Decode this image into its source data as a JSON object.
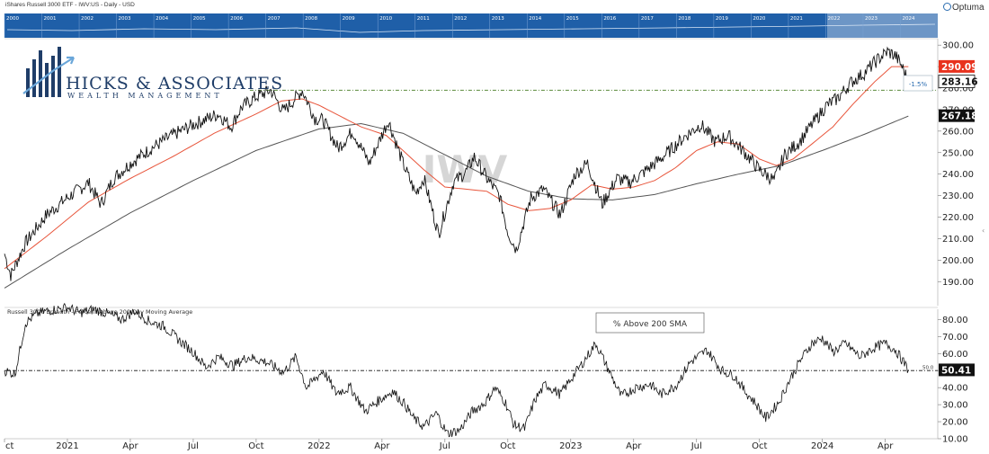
{
  "header": {
    "title": "iShares Russell 3000 ETF - IWV:US - Daily - USD",
    "brand": "Optuma"
  },
  "logo": {
    "name": "HICKS & ASSOCIATES",
    "tagline": "WEALTH MANAGEMENT"
  },
  "colors": {
    "price": "#111111",
    "ma_fast": "#e8553b",
    "ma_slow": "#555555",
    "navigator": "#1f5fa8",
    "badge_red": "#e8321e",
    "badge_black": "#111111",
    "ref_line": "#5a8a3a"
  },
  "navigator": {
    "years": [
      "2000",
      "2001",
      "2002",
      "2003",
      "2004",
      "2005",
      "2006",
      "2007",
      "2008",
      "2009",
      "2010",
      "2011",
      "2012",
      "2013",
      "2014",
      "2015",
      "2016",
      "2017",
      "2018",
      "2019",
      "2020",
      "2021",
      "2022",
      "2023",
      "2024"
    ]
  },
  "chart_data": [
    {
      "type": "line",
      "watermark": "IWV",
      "y_ticks": [
        190,
        200,
        210,
        220,
        230,
        240,
        250,
        260,
        270,
        280,
        290,
        300
      ],
      "y_tick_labels": [
        "190.00",
        "200.00",
        "210.00",
        "220.00",
        "230.00",
        "240.00",
        "250.00",
        "260.00",
        "270.00",
        "280.00",
        "290.00",
        "300.00"
      ],
      "ylim": [
        183,
        303
      ],
      "x_labels": [
        "ct",
        "2021",
        "Apr",
        "Jul",
        "Oct",
        "2022",
        "Apr",
        "Jul",
        "Oct",
        "2023",
        "Apr",
        "Jul",
        "Oct",
        "2024",
        "Apr"
      ],
      "x_label_pos": [
        0,
        3,
        6,
        9,
        12,
        15,
        18,
        21,
        24,
        27,
        30,
        33,
        36,
        39,
        42
      ],
      "xlim": [
        0,
        44.5
      ],
      "price_anchors": [
        [
          0,
          203
        ],
        [
          0.3,
          193
        ],
        [
          1,
          208
        ],
        [
          2,
          221
        ],
        [
          3,
          229
        ],
        [
          4,
          236
        ],
        [
          4.6,
          226
        ],
        [
          5.2,
          238
        ],
        [
          6,
          245
        ],
        [
          7,
          252
        ],
        [
          8,
          258
        ],
        [
          9,
          263
        ],
        [
          10.2,
          268
        ],
        [
          10.8,
          262
        ],
        [
          11.3,
          271
        ],
        [
          12,
          276
        ],
        [
          12.7,
          279
        ],
        [
          13.3,
          269
        ],
        [
          14.2,
          279
        ],
        [
          14.8,
          266
        ],
        [
          15.2,
          265
        ],
        [
          15.9,
          252
        ],
        [
          16.6,
          260
        ],
        [
          17.4,
          245
        ],
        [
          18.3,
          265
        ],
        [
          19,
          245
        ],
        [
          19.6,
          231
        ],
        [
          20,
          238
        ],
        [
          20.7,
          212
        ],
        [
          21.4,
          236
        ],
        [
          22,
          241
        ],
        [
          22.4,
          248
        ],
        [
          23,
          238
        ],
        [
          23.6,
          230
        ],
        [
          24,
          213
        ],
        [
          24.4,
          205
        ],
        [
          25.1,
          229
        ],
        [
          25.7,
          233
        ],
        [
          26.5,
          221
        ],
        [
          27.2,
          240
        ],
        [
          27.8,
          245
        ],
        [
          28.5,
          226
        ],
        [
          29.2,
          238
        ],
        [
          29.8,
          236
        ],
        [
          30.5,
          241
        ],
        [
          31.4,
          248
        ],
        [
          32.5,
          258
        ],
        [
          33.2,
          263
        ],
        [
          33.9,
          255
        ],
        [
          34.5,
          258
        ],
        [
          35.3,
          250
        ],
        [
          36,
          242
        ],
        [
          36.7,
          237
        ],
        [
          37.2,
          249
        ],
        [
          37.9,
          255
        ],
        [
          38.5,
          263
        ],
        [
          39.2,
          272
        ],
        [
          39.7,
          275
        ],
        [
          40.4,
          283
        ],
        [
          41,
          287
        ],
        [
          41.6,
          293
        ],
        [
          42.1,
          297
        ],
        [
          42.5,
          295
        ],
        [
          42.8,
          290
        ],
        [
          43.1,
          283
        ]
      ],
      "ma_fast_anchors": [
        [
          0,
          196
        ],
        [
          2,
          211
        ],
        [
          4,
          227
        ],
        [
          6,
          238
        ],
        [
          8,
          248
        ],
        [
          10,
          259
        ],
        [
          12,
          268
        ],
        [
          13.2,
          274
        ],
        [
          14.2,
          275
        ],
        [
          15,
          272
        ],
        [
          16,
          267
        ],
        [
          17,
          262
        ],
        [
          18.2,
          258
        ],
        [
          19,
          251
        ],
        [
          20,
          242
        ],
        [
          21,
          234
        ],
        [
          22,
          233
        ],
        [
          23,
          232
        ],
        [
          24,
          226
        ],
        [
          25,
          223
        ],
        [
          26,
          224
        ],
        [
          27,
          228
        ],
        [
          28,
          235
        ],
        [
          29,
          233
        ],
        [
          30,
          234
        ],
        [
          31,
          237
        ],
        [
          32,
          243
        ],
        [
          33,
          251
        ],
        [
          34,
          255
        ],
        [
          35,
          254
        ],
        [
          36,
          247
        ],
        [
          36.8,
          244
        ],
        [
          37.6,
          247
        ],
        [
          38.5,
          254
        ],
        [
          39.5,
          262
        ],
        [
          40.5,
          273
        ],
        [
          41.5,
          283
        ],
        [
          42.3,
          290
        ],
        [
          43.1,
          290
        ]
      ],
      "ma_slow_anchors": [
        [
          0,
          187
        ],
        [
          3,
          205
        ],
        [
          6,
          222
        ],
        [
          9,
          237
        ],
        [
          12,
          251
        ],
        [
          15,
          261
        ],
        [
          17,
          263.5
        ],
        [
          19,
          259
        ],
        [
          21,
          249
        ],
        [
          23,
          239
        ],
        [
          25,
          232
        ],
        [
          27,
          228.5
        ],
        [
          29,
          228
        ],
        [
          31,
          230.5
        ],
        [
          33,
          235.5
        ],
        [
          35,
          240
        ],
        [
          37,
          244
        ],
        [
          39,
          251
        ],
        [
          41,
          258.5
        ],
        [
          43.1,
          267
        ]
      ],
      "reference_line": 279,
      "badges": [
        {
          "label": "290.09",
          "value": 290.09,
          "color": "#e8321e"
        },
        {
          "label": "283.16",
          "value": 283.16,
          "color": "#ffffff"
        },
        {
          "label": "267.18",
          "value": 267.18,
          "color": "#111111"
        }
      ],
      "annotation": "-1.5%"
    },
    {
      "type": "line",
      "title": "Russell 3000 Breadth - Percent Above 200 Day Moving Average",
      "legend": "% Above 200 SMA",
      "y_ticks": [
        10,
        20,
        30,
        40,
        50,
        60,
        70,
        80
      ],
      "y_tick_labels": [
        "10.00",
        "20.00",
        "30.00",
        "40.00",
        "50.00",
        "60.00",
        "70.00",
        "80.00"
      ],
      "ylim": [
        10,
        86
      ],
      "reference_line": 50,
      "reference_label": "50.0",
      "breadth_anchors": [
        [
          0,
          50
        ],
        [
          0.5,
          48
        ],
        [
          1,
          78
        ],
        [
          1.5,
          83
        ],
        [
          2,
          85
        ],
        [
          3,
          87
        ],
        [
          3.6,
          84
        ],
        [
          4.3,
          86
        ],
        [
          5,
          83
        ],
        [
          5.6,
          80
        ],
        [
          6.2,
          85
        ],
        [
          6.9,
          79
        ],
        [
          7.6,
          76
        ],
        [
          8.4,
          67
        ],
        [
          9,
          61
        ],
        [
          9.6,
          52
        ],
        [
          10.2,
          58
        ],
        [
          10.9,
          53
        ],
        [
          11.6,
          58
        ],
        [
          12.5,
          55
        ],
        [
          13.3,
          49
        ],
        [
          13.9,
          58
        ],
        [
          14.4,
          40
        ],
        [
          15.2,
          50
        ],
        [
          15.8,
          37
        ],
        [
          16.5,
          40
        ],
        [
          17.2,
          26
        ],
        [
          17.8,
          32
        ],
        [
          18.5,
          38
        ],
        [
          19.1,
          30
        ],
        [
          19.5,
          22
        ],
        [
          20,
          17
        ],
        [
          20.6,
          25
        ],
        [
          21.1,
          13
        ],
        [
          21.7,
          15
        ],
        [
          22.3,
          26
        ],
        [
          22.9,
          31
        ],
        [
          23.4,
          40
        ],
        [
          23.9,
          31
        ],
        [
          24.3,
          18
        ],
        [
          24.8,
          16
        ],
        [
          25.3,
          33
        ],
        [
          25.8,
          42
        ],
        [
          26.5,
          36
        ],
        [
          27,
          45
        ],
        [
          27.6,
          55
        ],
        [
          28.2,
          66
        ],
        [
          28.7,
          53
        ],
        [
          29.4,
          35
        ],
        [
          30.1,
          40
        ],
        [
          30.8,
          42
        ],
        [
          31.3,
          36
        ],
        [
          32,
          41
        ],
        [
          32.7,
          55
        ],
        [
          33.5,
          62
        ],
        [
          34.2,
          50
        ],
        [
          34.8,
          47
        ],
        [
          35.3,
          38
        ],
        [
          35.8,
          31
        ],
        [
          36.3,
          22
        ],
        [
          36.9,
          31
        ],
        [
          37.5,
          46
        ],
        [
          38,
          57
        ],
        [
          38.5,
          66
        ],
        [
          39,
          69
        ],
        [
          39.5,
          61
        ],
        [
          40.1,
          66
        ],
        [
          40.8,
          58
        ],
        [
          41.4,
          63
        ],
        [
          42,
          66
        ],
        [
          42.5,
          62
        ],
        [
          43.1,
          50.41
        ]
      ],
      "badge": {
        "label": "50.41",
        "value": 50.41
      }
    }
  ]
}
